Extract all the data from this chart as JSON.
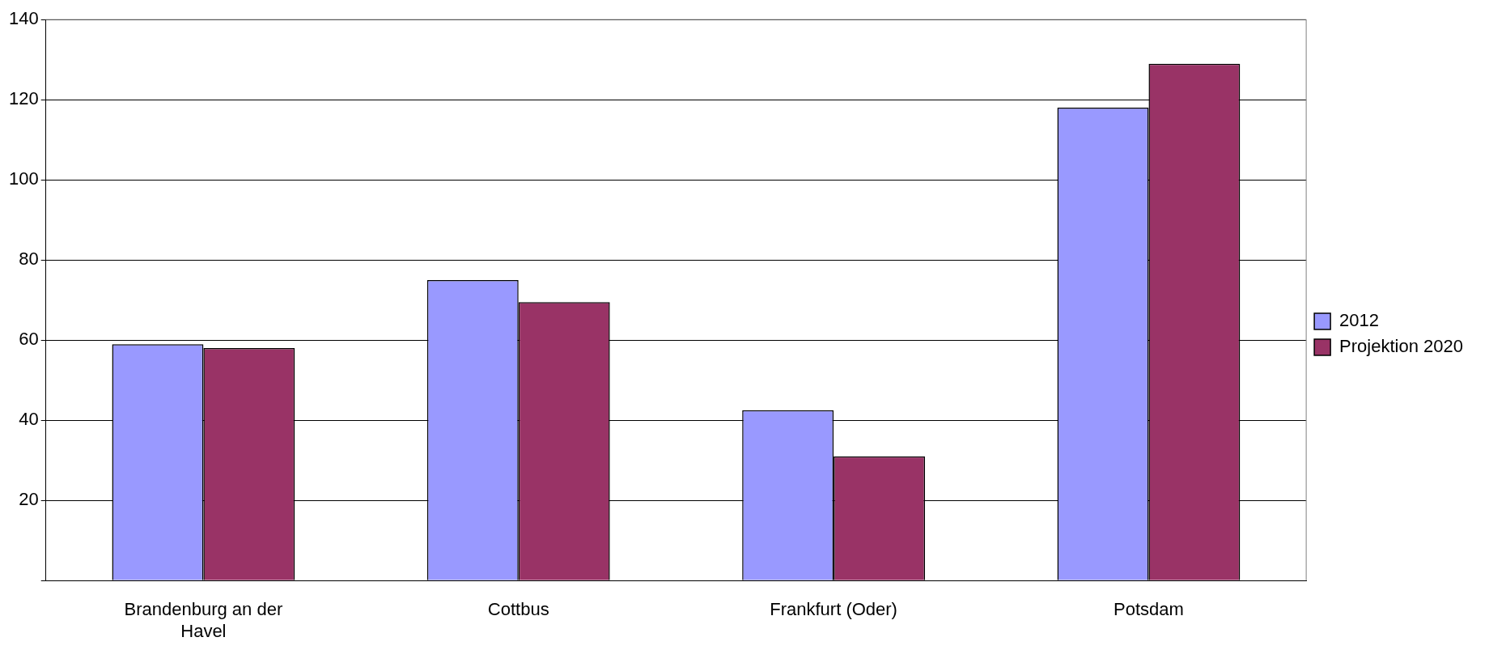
{
  "chart_data": {
    "type": "bar",
    "categories": [
      "Brandenburg an der Havel",
      "Cottbus",
      "Frankfurt (Oder)",
      "Potsdam"
    ],
    "series": [
      {
        "name": "2012",
        "color": "#9999ff",
        "values": [
          59,
          75,
          42.5,
          118
        ]
      },
      {
        "name": "Projektion 2020",
        "color": "#993366",
        "values": [
          58,
          69.5,
          31,
          129
        ]
      }
    ],
    "ylim": [
      0,
      140
    ],
    "yticks": [
      {
        "value": 0,
        "label": null
      },
      20,
      40,
      60,
      80,
      100,
      120,
      140
    ],
    "grid": "y",
    "legend": "right"
  }
}
